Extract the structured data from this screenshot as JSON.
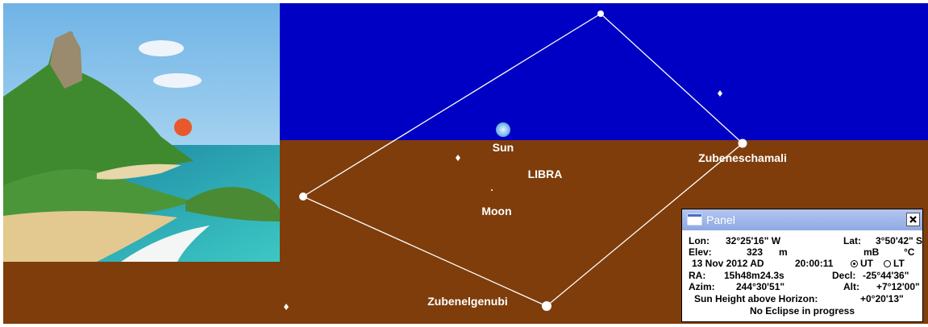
{
  "sky": {
    "bodies": {
      "sun": "Sun",
      "moon": "Moon"
    },
    "constellation": "LIBRA",
    "stars": {
      "north": "Zubeneschamali",
      "south": "Zubenelgenubi"
    }
  },
  "panel": {
    "title": "Panel",
    "rows": [
      [
        "Lon:",
        "32°25'16\" W",
        "Lat:",
        "3°50'42\" S"
      ],
      [
        "Elev:",
        "323",
        "m",
        "mB",
        "°C"
      ],
      [
        "13 Nov 2012 AD",
        "20:00:11",
        "UT",
        "LT"
      ],
      [
        "RA:",
        "15h48m24.3s",
        "Decl:",
        "-25°44'36\""
      ],
      [
        "Azim:",
        "244°30'51\"",
        "Alt:",
        "+7°12'00\""
      ],
      [
        "Sun Height above Horizon:",
        "+0°20'13\""
      ],
      [
        "No Eclipse in progress"
      ]
    ]
  }
}
